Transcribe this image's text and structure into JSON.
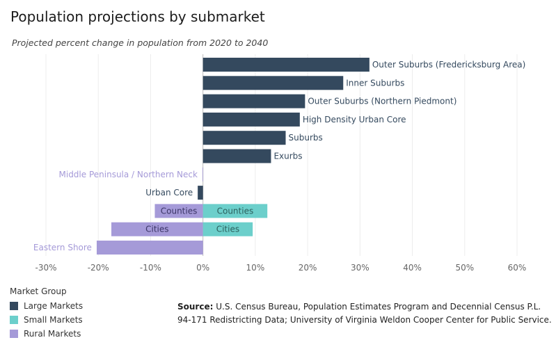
{
  "header": {
    "title": "Population projections by submarket",
    "subtitle": "Projected percent change in population from 2020 to 2040"
  },
  "legend": {
    "title": "Market Group",
    "items": [
      {
        "label": "Large Markets",
        "color": "#34495e"
      },
      {
        "label": "Small Markets",
        "color": "#6ccfcb"
      },
      {
        "label": "Rural Markets",
        "color": "#a59ad8"
      }
    ]
  },
  "source": {
    "label": "Source:",
    "text": "U.S. Census Bureau, Population Estimates Program and Decennial Census P.L. 94-171 Redistricting Data; University of Virginia Weldon Cooper Center for Public Service."
  },
  "chart_data": {
    "type": "bar",
    "orientation": "horizontal",
    "xlim": [
      -30,
      60
    ],
    "xticks": [
      -30,
      -20,
      -10,
      0,
      10,
      20,
      30,
      40,
      50,
      60
    ],
    "xtick_labels": [
      "-30%",
      "-20%",
      "-10%",
      "0%",
      "10%",
      "20%",
      "30%",
      "40%",
      "50%",
      "60%"
    ],
    "grid": true,
    "rows": [
      {
        "bars": [
          {
            "label": "Outer Suburbs (Fredericksburg Area)",
            "value": 31.8,
            "group": "Large Markets"
          }
        ]
      },
      {
        "bars": [
          {
            "label": "Inner Suburbs",
            "value": 26.8,
            "group": "Large Markets"
          }
        ]
      },
      {
        "bars": [
          {
            "label": "Outer Suburbs (Northern Piedmont)",
            "value": 19.5,
            "group": "Large Markets"
          }
        ]
      },
      {
        "bars": [
          {
            "label": "High Density Urban Core",
            "value": 18.5,
            "group": "Large Markets"
          }
        ]
      },
      {
        "bars": [
          {
            "label": "Suburbs",
            "value": 15.8,
            "group": "Large Markets"
          }
        ]
      },
      {
        "bars": [
          {
            "label": "Exurbs",
            "value": 13.0,
            "group": "Large Markets"
          }
        ]
      },
      {
        "bars": [
          {
            "label": "Middle Peninsula / Northern Neck",
            "value": -0.1,
            "group": "Rural Markets"
          }
        ]
      },
      {
        "bars": [
          {
            "label": "Urban Core",
            "value": -1.0,
            "group": "Large Markets"
          }
        ]
      },
      {
        "bars": [
          {
            "label": "Counties",
            "value": -9.2,
            "group": "Rural Markets"
          },
          {
            "label": "Counties",
            "value": 12.3,
            "group": "Small Markets"
          }
        ]
      },
      {
        "bars": [
          {
            "label": "Cities",
            "value": -17.5,
            "group": "Rural Markets"
          },
          {
            "label": "Cities",
            "value": 9.5,
            "group": "Small Markets"
          }
        ]
      },
      {
        "bars": [
          {
            "label": "Eastern Shore",
            "value": -20.3,
            "group": "Rural Markets"
          }
        ]
      }
    ]
  }
}
